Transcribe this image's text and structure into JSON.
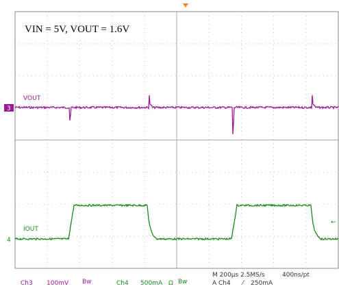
{
  "header": {
    "title": "VIN = 5V, VOUT = 1.6V"
  },
  "traces": [
    {
      "label": "VOUT",
      "marker": "3"
    },
    {
      "label": "IOUT",
      "marker": "4"
    }
  ],
  "footer": {
    "ch3": "Ch3",
    "ch3_scale": "100mV",
    "ch3_bw": "Bw",
    "ch4": "Ch4",
    "ch4_scale": "500mA",
    "ch4_ohm": "Ω",
    "ch4_bw": "Bw",
    "timebase": "M 200µs 2.5MS/s",
    "resolution": "400ns/pt",
    "trigger_source": "A Ch4",
    "trigger_slope": "⁄",
    "trigger_level": "250mA"
  }
}
